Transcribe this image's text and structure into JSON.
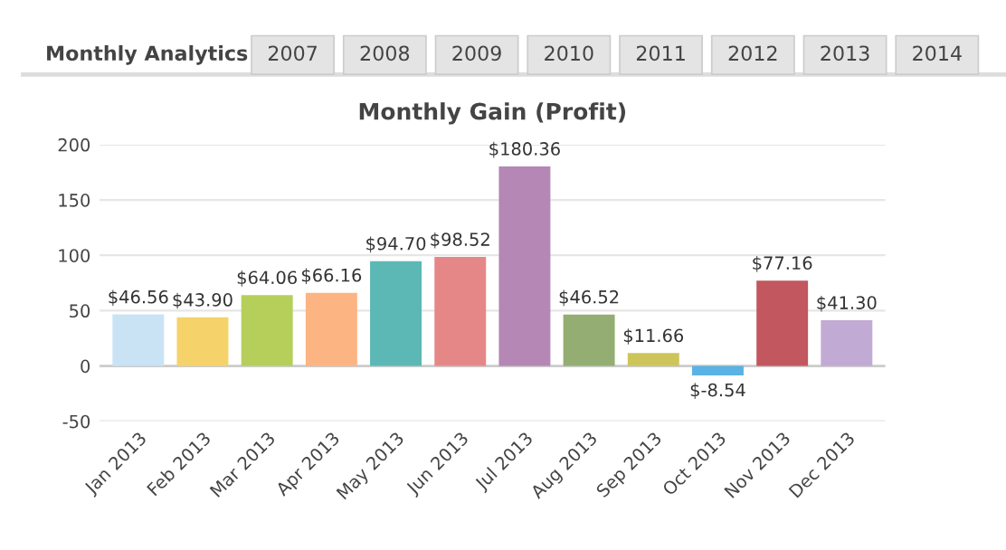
{
  "chart_data": {
    "type": "bar",
    "title": "Monthly Gain (Profit)",
    "categories": [
      "Jan 2013",
      "Feb 2013",
      "Mar 2013",
      "Apr 2013",
      "May 2013",
      "Jun 2013",
      "Jul 2013",
      "Aug 2013",
      "Sep 2013",
      "Oct 2013",
      "Nov 2013",
      "Dec 2013"
    ],
    "values": [
      46.56,
      43.9,
      64.06,
      66.16,
      94.7,
      98.52,
      180.36,
      46.52,
      11.66,
      -8.54,
      77.16,
      41.3
    ],
    "value_labels": [
      "$46.56",
      "$43.90",
      "$64.06",
      "$66.16",
      "$94.70",
      "$98.52",
      "$180.36",
      "$46.52",
      "$11.66",
      "$-8.54",
      "$77.16",
      "$41.30"
    ],
    "colors": [
      "#c9e3f5",
      "#f5d36a",
      "#b5cf5a",
      "#fcb482",
      "#5bb8b5",
      "#e68787",
      "#b487b4",
      "#93ad72",
      "#cdc55a",
      "#5ab3e3",
      "#c2575f",
      "#c1aad3"
    ],
    "ylim": [
      -50,
      200
    ],
    "yticks": [
      -50,
      0,
      50,
      100,
      150,
      200
    ],
    "grid": "y",
    "annotations": [
      "Monthly Analytics",
      "2007",
      "2008",
      "2009",
      "2010",
      "2011",
      "2012",
      "2013",
      "2014"
    ]
  }
}
